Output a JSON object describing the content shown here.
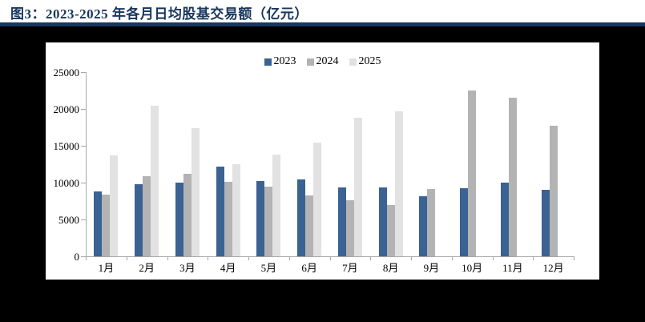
{
  "figure": {
    "title": "图3：2023-2025 年各月日均股基交易额（亿元）"
  },
  "colors": {
    "title_navy": "#17365D",
    "rule_navy": "#17365D",
    "panel_background": "#FFFFFF",
    "page_background": "#000000",
    "axis_gray": "#A6A6A6",
    "series_2023": "#3A6293",
    "series_2024": "#B3B3B3",
    "series_2025": "#E2E2E2"
  },
  "chart_data": {
    "type": "bar",
    "title": "图3：2023-2025 年各月日均股基交易额（亿元）",
    "categories": [
      "1月",
      "2月",
      "3月",
      "4月",
      "5月",
      "6月",
      "7月",
      "8月",
      "9月",
      "10月",
      "11月",
      "12月"
    ],
    "series": [
      {
        "name": "2023",
        "color": "#3A6293",
        "values": [
          8850,
          9800,
          9950,
          12150,
          10200,
          10450,
          9300,
          9300,
          8100,
          9200,
          10000,
          9000
        ]
      },
      {
        "name": "2024",
        "color": "#B3B3B3",
        "values": [
          8400,
          10850,
          11150,
          10100,
          9450,
          8250,
          7600,
          7000,
          9150,
          22500,
          21500,
          17700
        ]
      },
      {
        "name": "2025",
        "color": "#E2E2E2",
        "values": [
          13700,
          20400,
          17400,
          12450,
          13800,
          15400,
          18800,
          19650,
          null,
          null,
          null,
          null
        ]
      }
    ],
    "ylabel": "",
    "xlabel": "",
    "ylim": [
      0,
      25000
    ],
    "yticks": [
      0,
      5000,
      10000,
      15000,
      20000,
      25000
    ],
    "legend_position": "top-center",
    "grid": false,
    "unit": "亿元"
  }
}
